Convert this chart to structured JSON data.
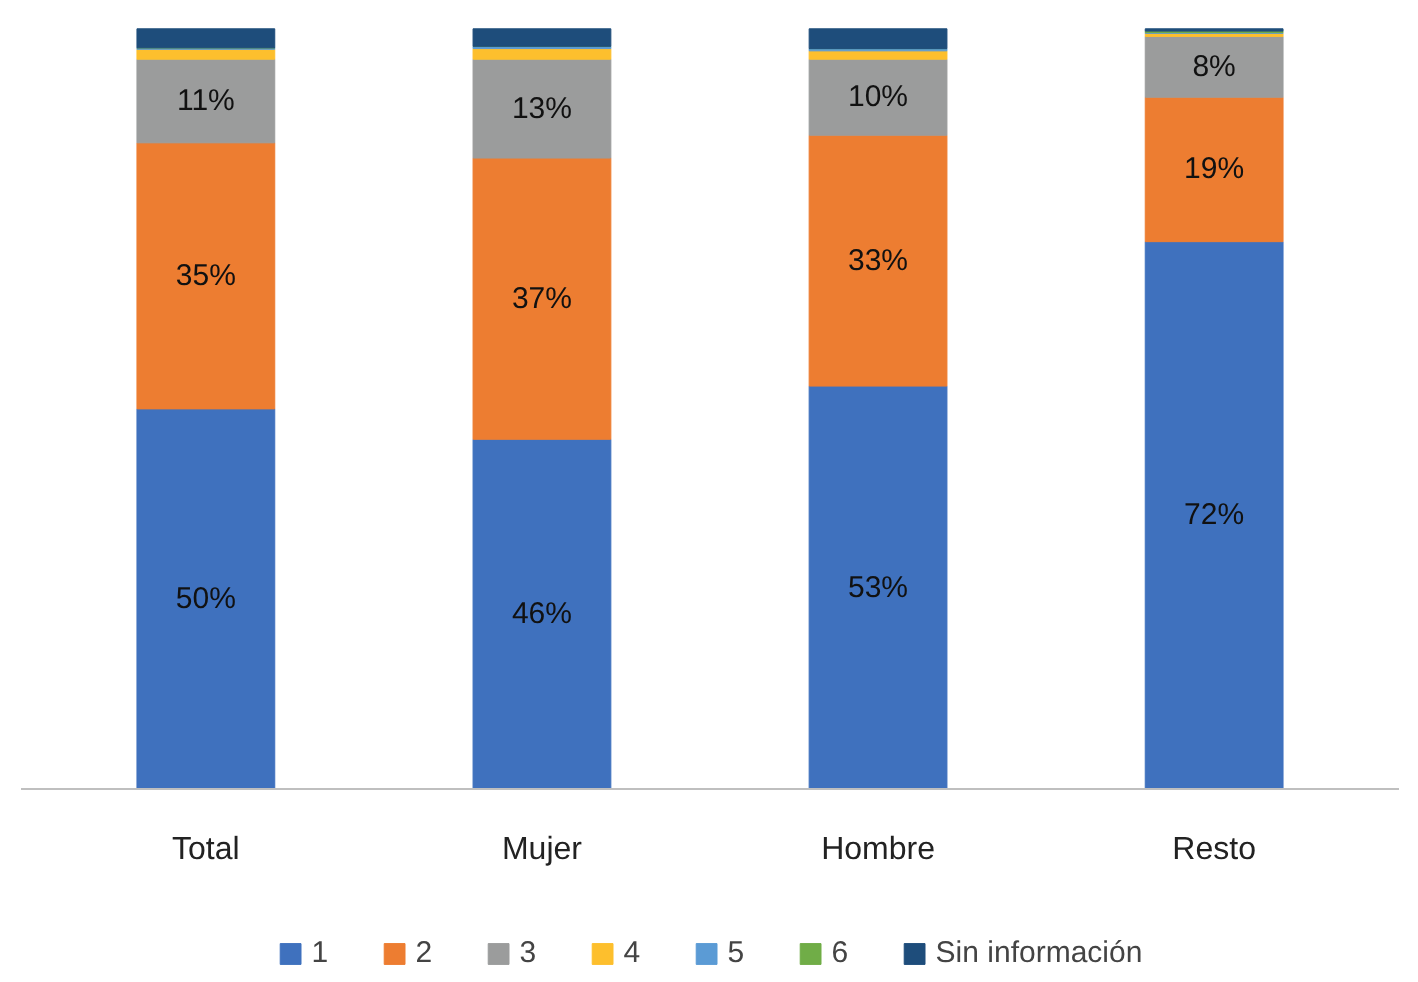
{
  "chart_data": {
    "type": "bar",
    "stacked": true,
    "categories": [
      "Total",
      "Mujer",
      "Hombre",
      "Resto"
    ],
    "series": [
      {
        "name": "1",
        "color": "#3f71be",
        "values": [
          50,
          46,
          53,
          72
        ],
        "value_labels": [
          "50%",
          "46%",
          "53%",
          "72%"
        ]
      },
      {
        "name": "2",
        "color": "#ed7d31",
        "values": [
          35,
          37,
          33,
          19
        ],
        "value_labels": [
          "35%",
          "37%",
          "33%",
          "19%"
        ]
      },
      {
        "name": "3",
        "color": "#9b9c9c",
        "values": [
          11,
          13,
          10,
          8
        ],
        "value_labels": [
          "11%",
          "13%",
          "10%",
          "8%"
        ]
      },
      {
        "name": "4",
        "color": "#fdbf2d",
        "values": [
          1.3,
          1.4,
          1.1,
          0.4
        ],
        "value_labels": [
          null,
          null,
          null,
          null
        ]
      },
      {
        "name": "5",
        "color": "#5b9bd5",
        "values": [
          0.2,
          0.3,
          0.3,
          0.1
        ],
        "value_labels": [
          null,
          null,
          null,
          null
        ]
      },
      {
        "name": "6",
        "color": "#70ad47",
        "values": [
          0,
          0,
          0,
          0.2
        ],
        "value_labels": [
          null,
          null,
          null,
          null
        ]
      },
      {
        "name": "Sin información",
        "color": "#1e4d7b",
        "values": [
          2.5,
          2.3,
          2.6,
          0.3
        ],
        "value_labels": [
          null,
          null,
          null,
          null
        ]
      }
    ],
    "legend": "bottom"
  }
}
